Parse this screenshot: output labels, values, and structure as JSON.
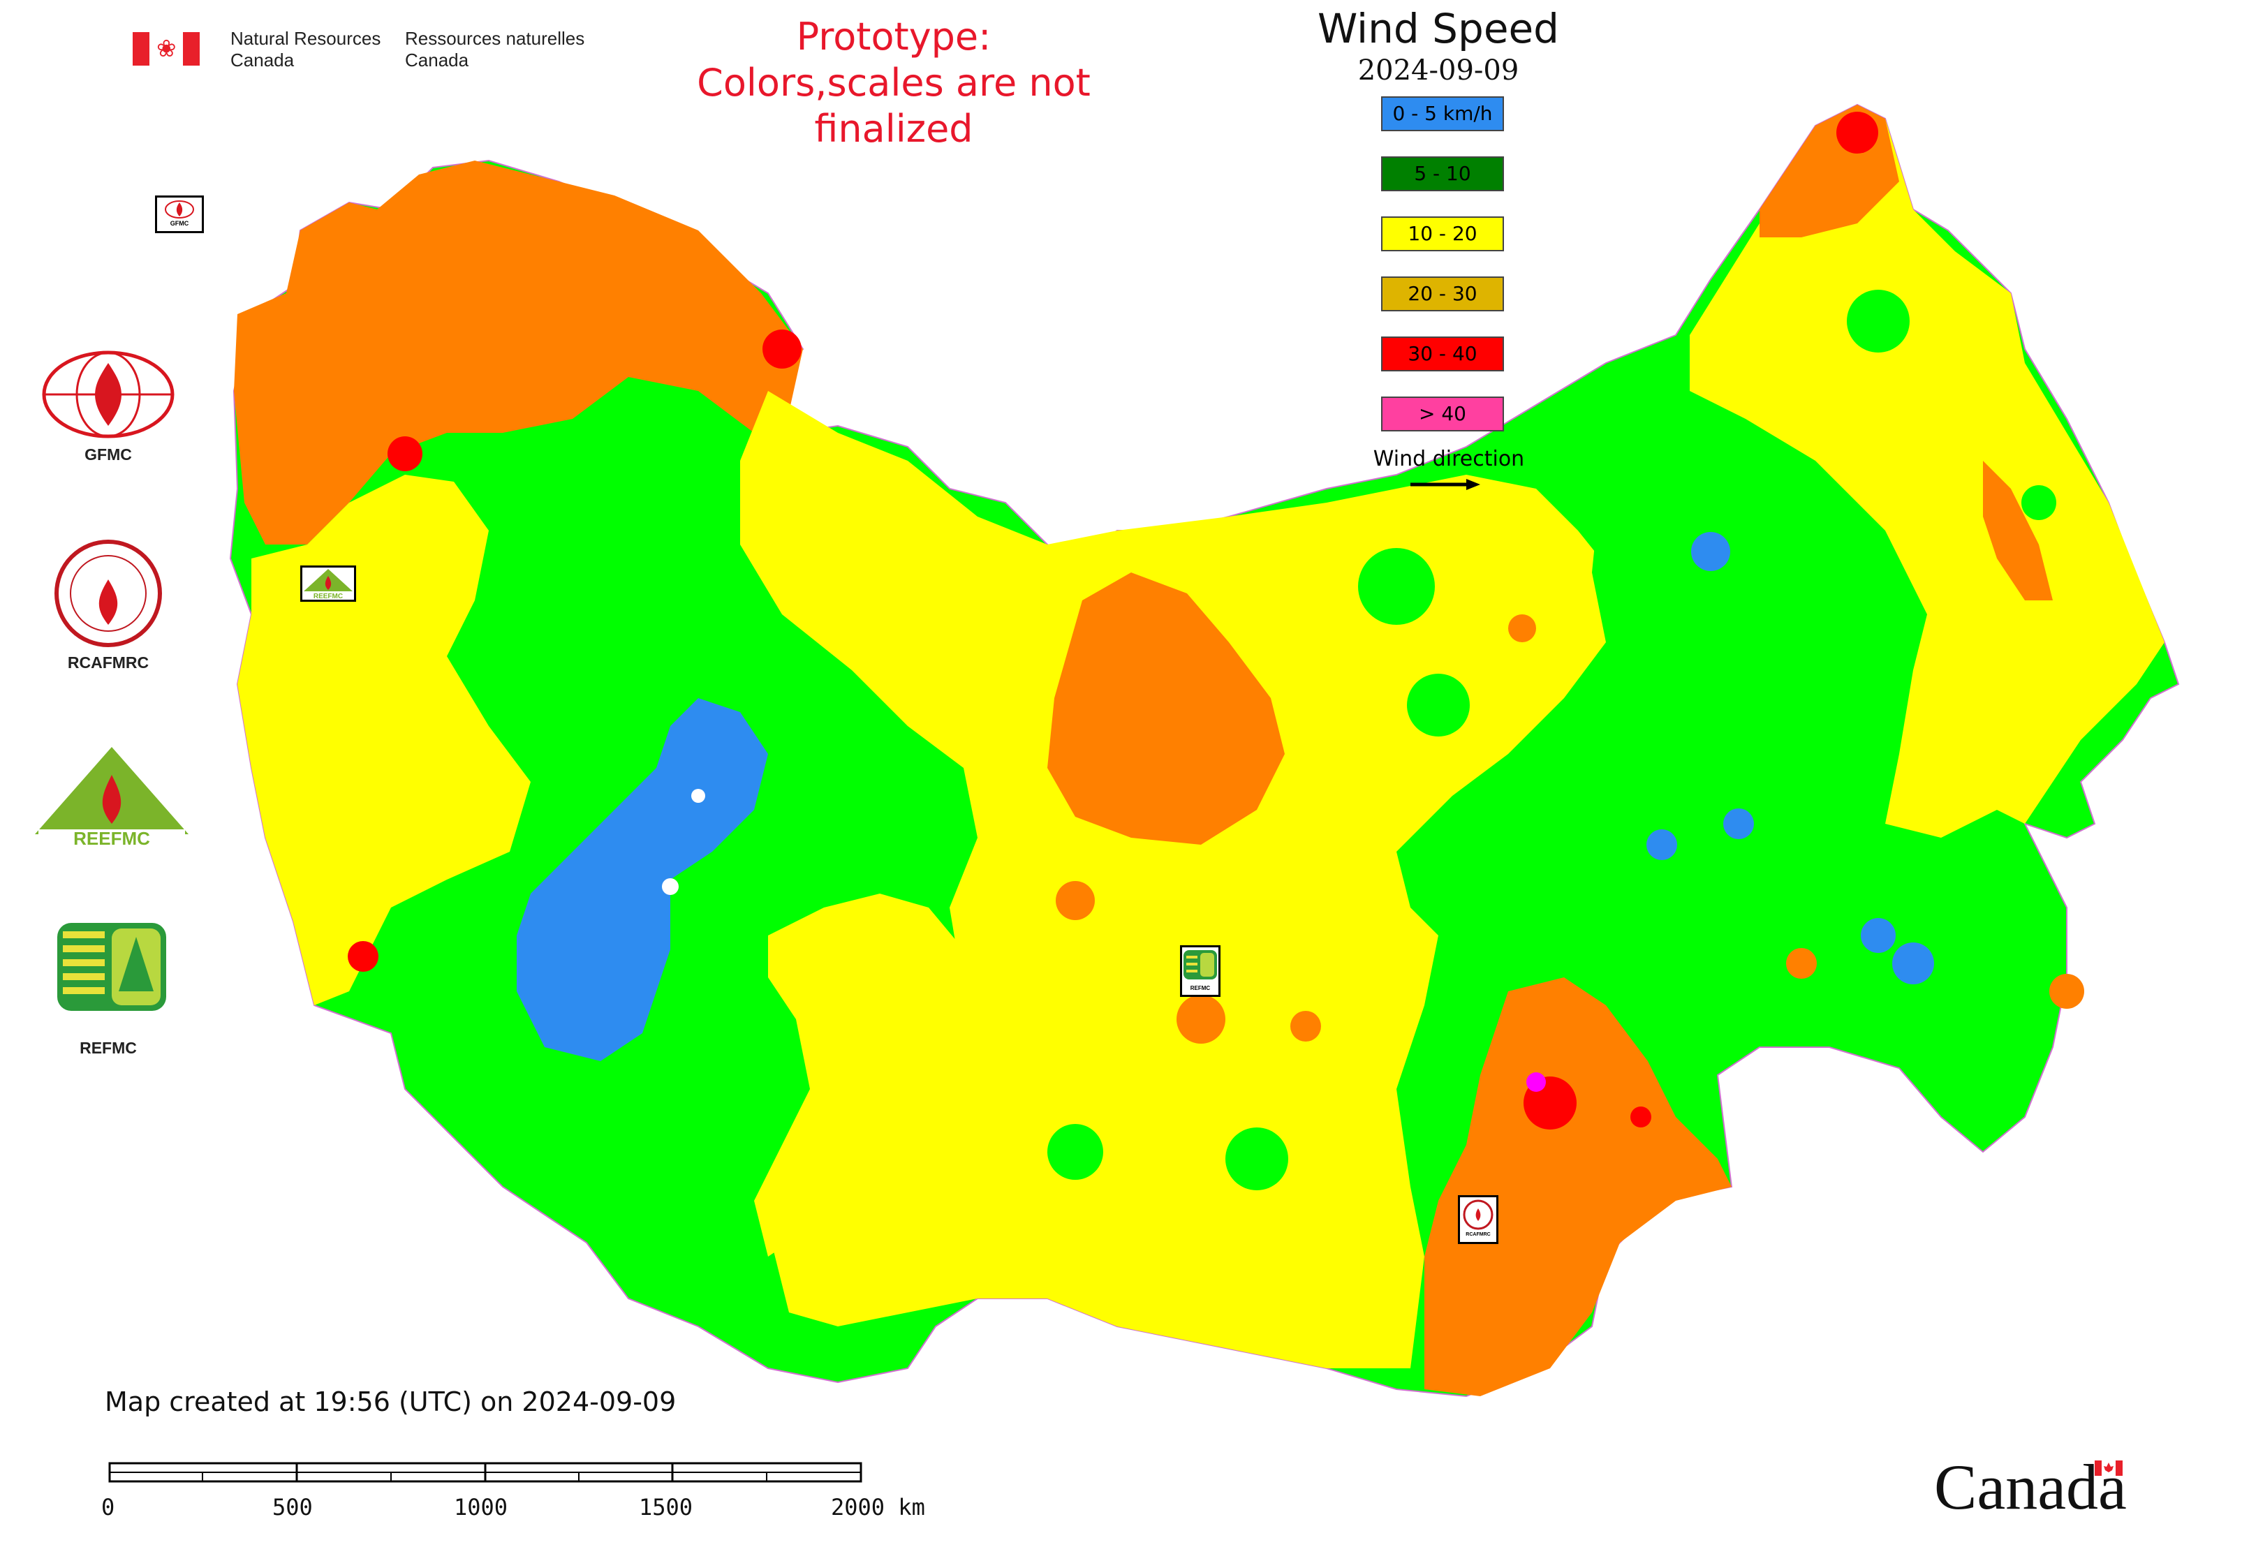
{
  "header": {
    "org_en_line1": "Natural Resources",
    "org_en_line2": "Canada",
    "org_fr_line1": "Ressources naturelles",
    "org_fr_line2": "Canada",
    "prototype_line1": "Prototype:",
    "prototype_line2": "Colors,scales are not finalized"
  },
  "title": "Wind Speed",
  "date": "2024-09-09",
  "legend": {
    "items": [
      {
        "label": "0 - 5 km/h",
        "color": "#2e8cf0"
      },
      {
        "label": "5 - 10",
        "color": "#008000"
      },
      {
        "label": "10 - 20",
        "color": "#ffff00"
      },
      {
        "label": "20 - 30",
        "color": "#deb400"
      },
      {
        "label": "30 - 40",
        "color": "#ff0000"
      },
      {
        "label": "> 40",
        "color": "#ff40a0"
      }
    ],
    "wind_direction_label": "Wind direction"
  },
  "map_colors": {
    "orange": "#ff8000",
    "yellow": "#ffff00",
    "light_green": "#00ff00",
    "green": "#00c800",
    "blue": "#2e8cf0",
    "red": "#ff0000",
    "magenta": "#ff00ff",
    "white": "#ffffff"
  },
  "partner_logos": [
    {
      "label": "GFMC"
    },
    {
      "label": "RCAFMRC"
    },
    {
      "label": "REEFMC"
    },
    {
      "label": "REFMC"
    }
  ],
  "station_markers": [
    {
      "label": "GFMC"
    },
    {
      "label": "REEFMC"
    },
    {
      "label": "REFMC"
    },
    {
      "label": "RCAFMRC"
    }
  ],
  "footer": {
    "created_text": "Map created at 19:56 (UTC) on 2024-09-09",
    "scale_labels": [
      "0",
      "500",
      "1000",
      "1500",
      "2000 km"
    ],
    "wordmark": "Canada"
  }
}
